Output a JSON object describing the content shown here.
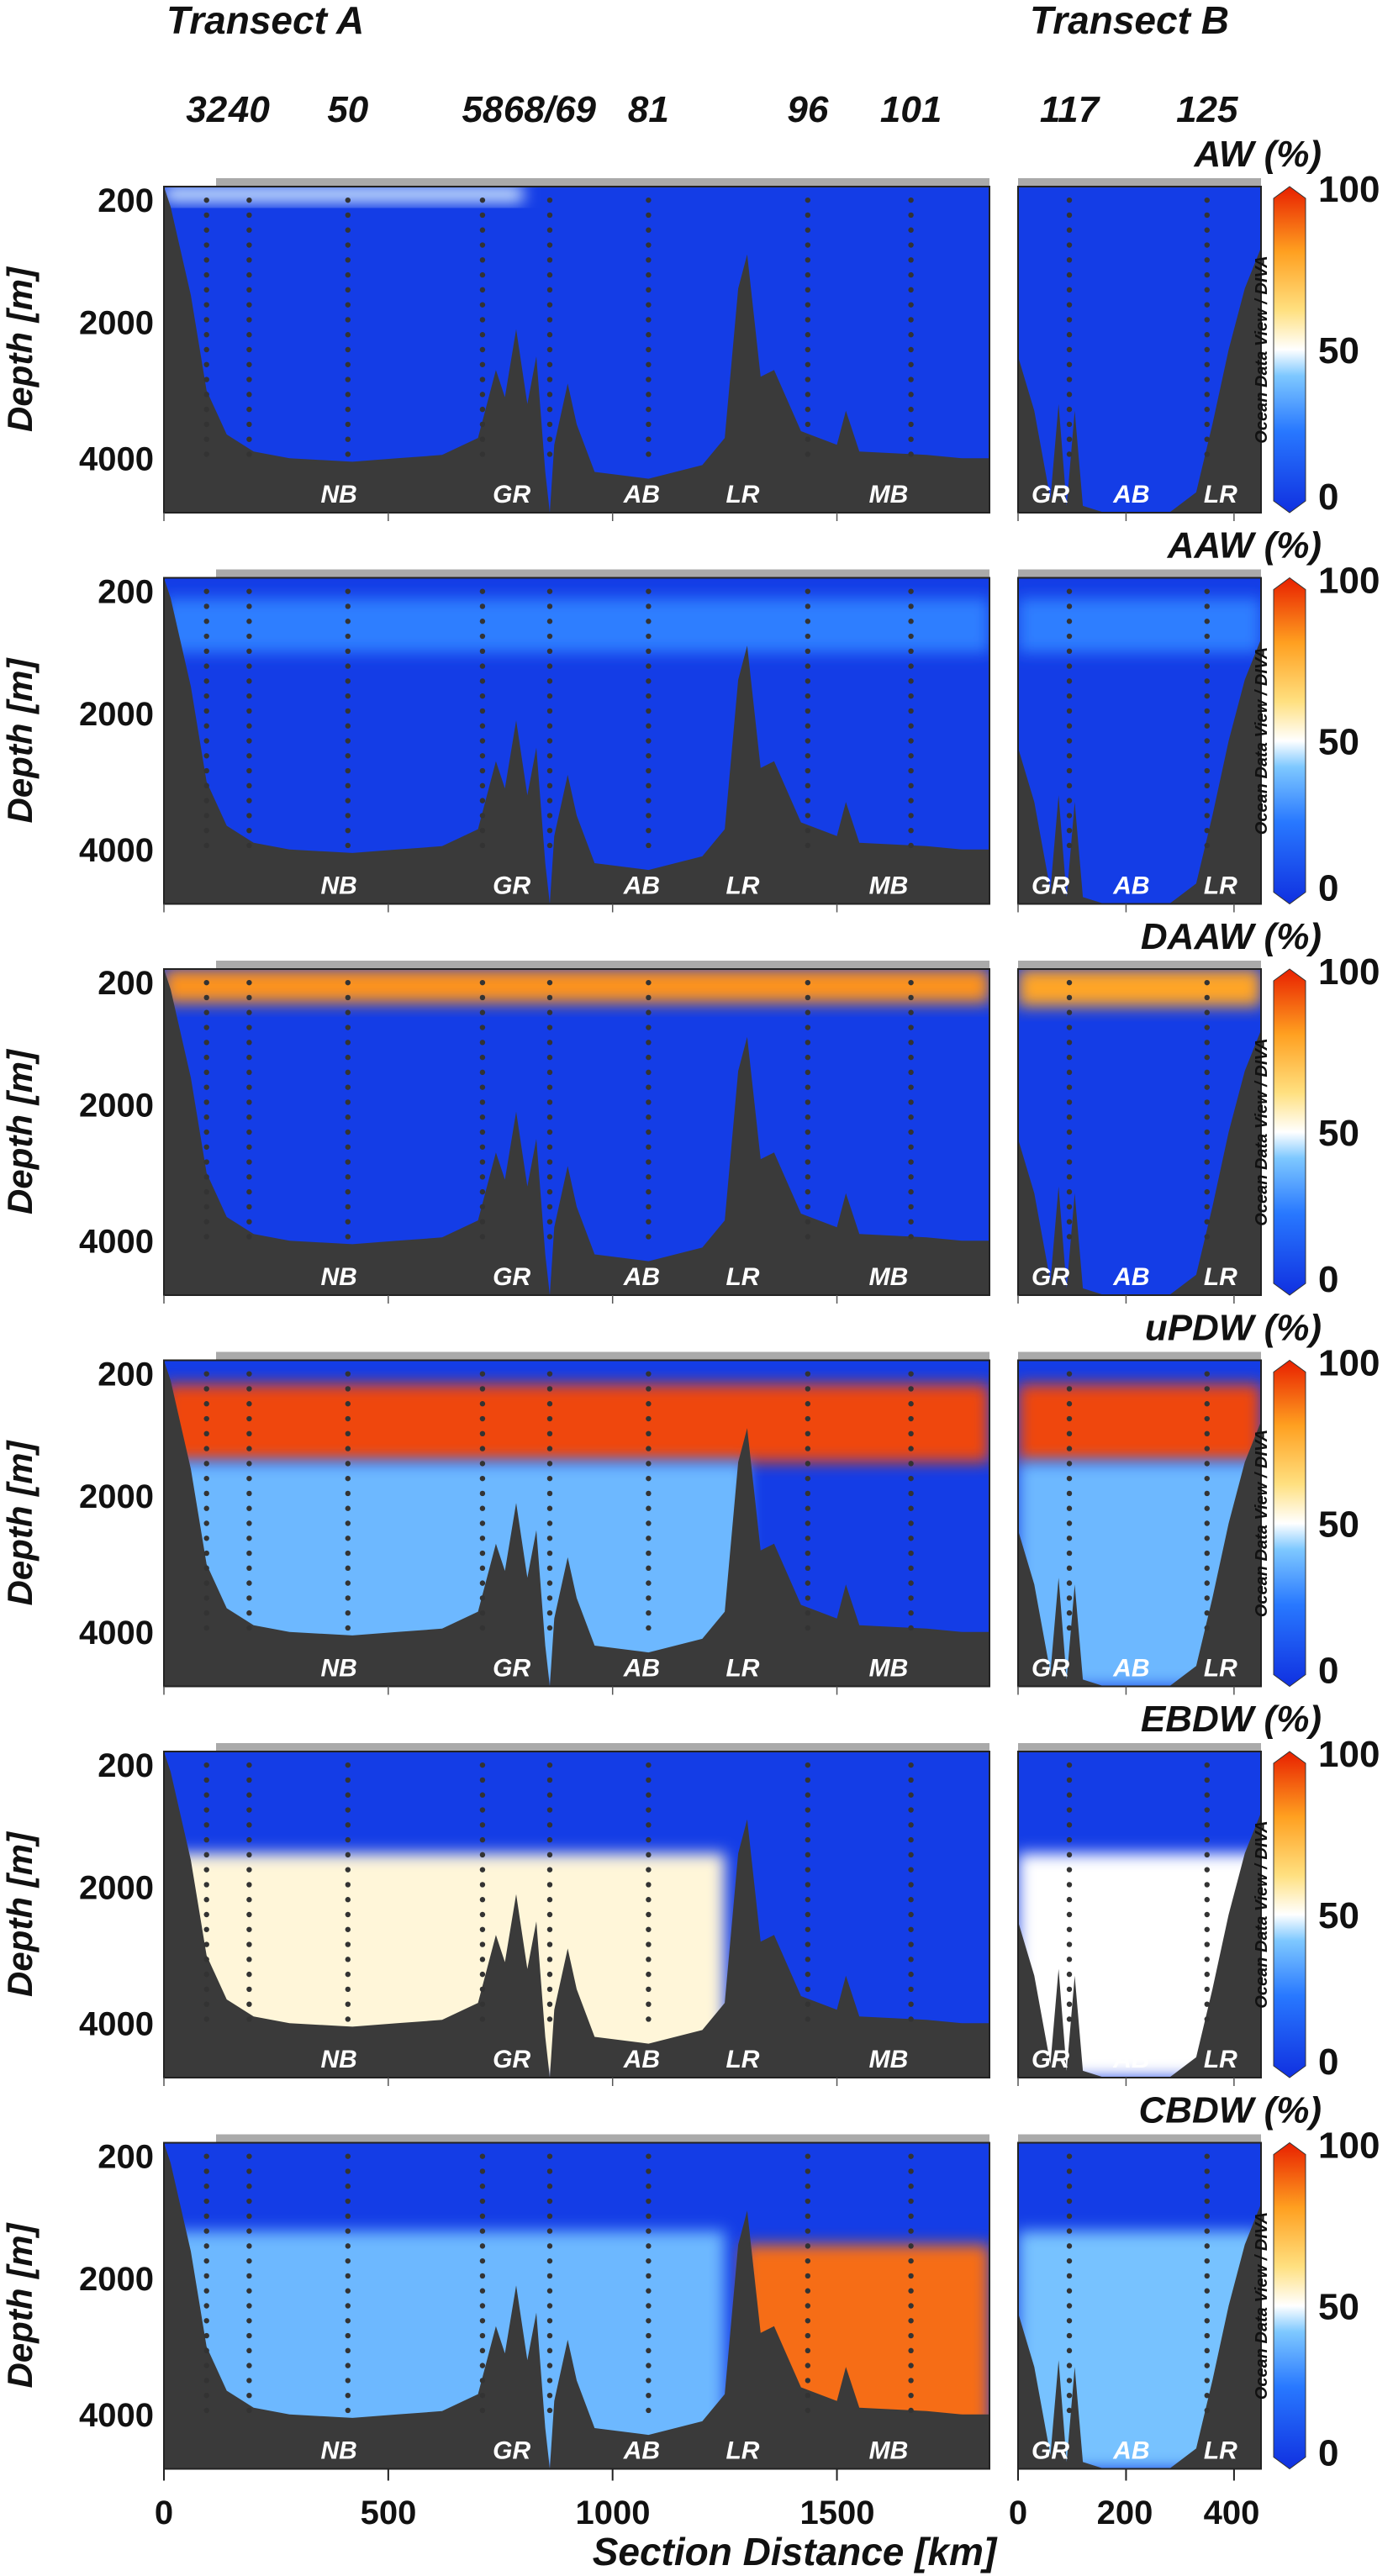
{
  "header": {
    "transect_a": "Transect A",
    "transect_b": "Transect B",
    "stations_a": [
      {
        "label": "32",
        "km": 95
      },
      {
        "label": "40",
        "km": 190
      },
      {
        "label": "50",
        "km": 410
      },
      {
        "label": "58",
        "km": 710
      },
      {
        "label": "68/69",
        "km": 860
      },
      {
        "label": "81",
        "km": 1080
      },
      {
        "label": "96",
        "km": 1435
      },
      {
        "label": "101",
        "km": 1665
      }
    ],
    "stations_b": [
      {
        "label": "117",
        "km": 95
      },
      {
        "label": "125",
        "km": 350
      }
    ]
  },
  "axes": {
    "ylabel": "Depth [m]",
    "yticks": [
      "200",
      "2000",
      "4000"
    ],
    "xlabel": "Section Distance [km]",
    "xticks_a": [
      "0",
      "500",
      "1000",
      "1500"
    ],
    "xticks_b": [
      "0",
      "200",
      "400"
    ]
  },
  "colorbar": {
    "ticks": [
      "100",
      "50",
      "0"
    ],
    "caption": "Ocean Data View / DIVA",
    "colors": [
      "#1030e0",
      "#2878ff",
      "#7ec8ff",
      "#ffffff",
      "#ffe080",
      "#ffa020",
      "#e82000"
    ]
  },
  "features_a": [
    {
      "label": "NB",
      "km": 390
    },
    {
      "label": "GR",
      "km": 775
    },
    {
      "label": "AB",
      "km": 1065
    },
    {
      "label": "LR",
      "km": 1290
    },
    {
      "label": "MB",
      "km": 1615
    }
  ],
  "features_b": [
    {
      "label": "GR",
      "km": 60
    },
    {
      "label": "AB",
      "km": 210
    },
    {
      "label": "LR",
      "km": 375
    }
  ],
  "chart_data": {
    "type": "heatmap",
    "description_units": "water mass fraction in percent (0-100) along two sections",
    "x_a": {
      "label": "Section Distance [km]",
      "range": [
        0,
        1840
      ]
    },
    "x_b": {
      "label": "Section Distance [km]",
      "range": [
        0,
        450
      ]
    },
    "y": {
      "label": "Depth [m]",
      "range": [
        0,
        4800
      ],
      "inverted": true
    },
    "panels": [
      {
        "title": "AW (%)",
        "layers_a": [
          {
            "top": 0,
            "bottom": 250,
            "value": 45,
            "xfrom": 0,
            "xto": 800,
            "scale": 0.9
          }
        ],
        "layers_b": []
      },
      {
        "title": "AAW (%)",
        "layers_a": [
          {
            "top": 300,
            "bottom": 1100,
            "value": 18
          }
        ],
        "layers_b": [
          {
            "top": 300,
            "bottom": 1100,
            "value": 18
          }
        ]
      },
      {
        "title": "DAAW (%)",
        "layers_a": [
          {
            "top": 0,
            "bottom": 500,
            "value": 85
          }
        ],
        "layers_b": [
          {
            "top": 0,
            "bottom": 550,
            "value": 82
          }
        ]
      },
      {
        "title": "uPDW (%)",
        "layers_a": [
          {
            "top": 350,
            "bottom": 1500,
            "value": 95
          },
          {
            "top": 1500,
            "bottom": 4800,
            "value": 30,
            "xfrom": 0,
            "xto": 1300
          }
        ],
        "layers_b": [
          {
            "top": 350,
            "bottom": 1500,
            "value": 95
          },
          {
            "top": 1500,
            "bottom": 4800,
            "value": 30
          }
        ]
      },
      {
        "title": "EBDW (%)",
        "layers_a": [
          {
            "top": 1500,
            "bottom": 4800,
            "value": 55,
            "xfrom": 0,
            "xto": 1250
          }
        ],
        "layers_b": [
          {
            "top": 1500,
            "bottom": 4800,
            "value": 50
          }
        ]
      },
      {
        "title": "CBDW (%)",
        "layers_a": [
          {
            "top": 1300,
            "bottom": 4800,
            "value": 30,
            "xfrom": 0,
            "xto": 1250
          },
          {
            "top": 1500,
            "bottom": 4800,
            "value": 90,
            "xfrom": 1290,
            "xto": 1840
          }
        ],
        "layers_b": [
          {
            "top": 1300,
            "bottom": 4800,
            "value": 32
          }
        ]
      }
    ],
    "bathymetry_a_depth_m": [
      [
        0,
        0
      ],
      [
        15,
        300
      ],
      [
        60,
        1600
      ],
      [
        95,
        3000
      ],
      [
        140,
        3650
      ],
      [
        200,
        3900
      ],
      [
        280,
        4000
      ],
      [
        420,
        4050
      ],
      [
        520,
        4000
      ],
      [
        620,
        3950
      ],
      [
        700,
        3700
      ],
      [
        740,
        2700
      ],
      [
        760,
        3100
      ],
      [
        785,
        2100
      ],
      [
        810,
        3200
      ],
      [
        830,
        2500
      ],
      [
        850,
        4200
      ],
      [
        860,
        4800
      ],
      [
        870,
        3800
      ],
      [
        900,
        2900
      ],
      [
        920,
        3500
      ],
      [
        960,
        4200
      ],
      [
        1080,
        4300
      ],
      [
        1200,
        4100
      ],
      [
        1250,
        3700
      ],
      [
        1280,
        1500
      ],
      [
        1300,
        1000
      ],
      [
        1330,
        2800
      ],
      [
        1360,
        2700
      ],
      [
        1420,
        3600
      ],
      [
        1500,
        3800
      ],
      [
        1520,
        3300
      ],
      [
        1550,
        3900
      ],
      [
        1700,
        3950
      ],
      [
        1780,
        4000
      ],
      [
        1840,
        4000
      ]
    ],
    "bathymetry_b_depth_m": [
      [
        0,
        4800
      ],
      [
        0,
        2500
      ],
      [
        30,
        3300
      ],
      [
        60,
        4600
      ],
      [
        75,
        3200
      ],
      [
        90,
        4700
      ],
      [
        105,
        3300
      ],
      [
        120,
        4700
      ],
      [
        160,
        4800
      ],
      [
        280,
        4800
      ],
      [
        330,
        4500
      ],
      [
        360,
        3500
      ],
      [
        390,
        2400
      ],
      [
        420,
        1500
      ],
      [
        450,
        900
      ],
      [
        450,
        4800
      ]
    ]
  }
}
